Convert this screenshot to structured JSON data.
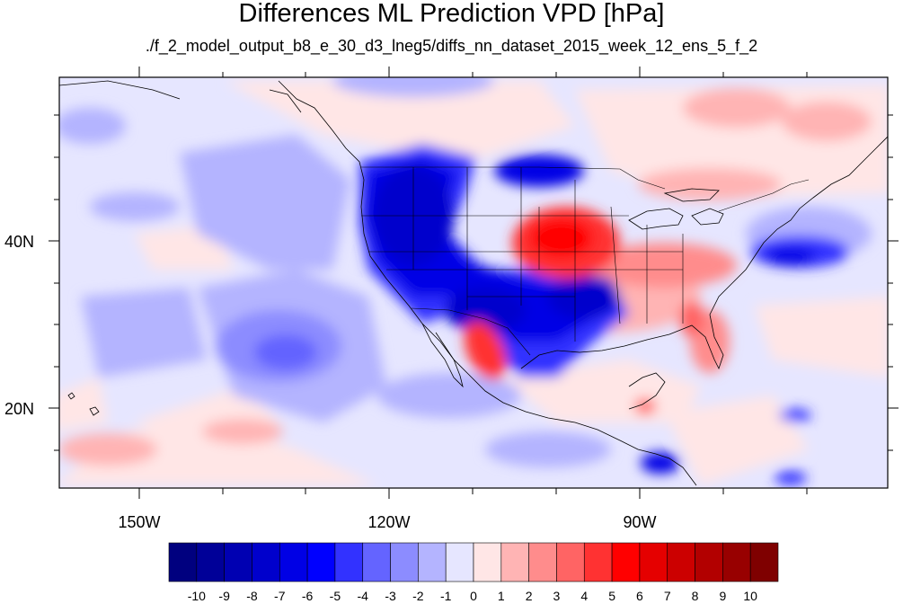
{
  "title": "Differences ML Prediction VPD [hPa]",
  "subtitle": "./f_2_model_output_b8_e_30_d3_lneg5/diffs_nn_dataset_2015_week_12_ens_5_f_2",
  "map": {
    "projection": "cylindrical equidistant",
    "lon_range": [
      -159.4,
      -59.6
    ],
    "lat_range": [
      10.7,
      59.5
    ],
    "region": "North America / Pacific"
  },
  "lon_ticks": [
    {
      "value": -150,
      "label": "150W"
    },
    {
      "value": -120,
      "label": "120W"
    },
    {
      "value": -90,
      "label": "90W"
    }
  ],
  "lat_ticks": [
    {
      "value": 40,
      "label": "40N"
    },
    {
      "value": 20,
      "label": "20N"
    }
  ],
  "colorbar": {
    "colors": [
      "#00007f",
      "#000098",
      "#0000b2",
      "#0000cc",
      "#0000e5",
      "#0000ff",
      "#3232ff",
      "#6464ff",
      "#8c8cff",
      "#b4b4ff",
      "#e6e6ff",
      "#ffe6e6",
      "#ffb4b4",
      "#ff8c8c",
      "#ff6464",
      "#ff3232",
      "#ff0000",
      "#e50000",
      "#cc0000",
      "#b20000",
      "#980000",
      "#7f0000"
    ],
    "labels": [
      "-10",
      "-9",
      "-8",
      "-7",
      "-6",
      "-5",
      "-4",
      "-3",
      "-2",
      "-1",
      "0",
      "1",
      "2",
      "3",
      "4",
      "5",
      "6",
      "7",
      "8",
      "9",
      "10"
    ]
  }
}
